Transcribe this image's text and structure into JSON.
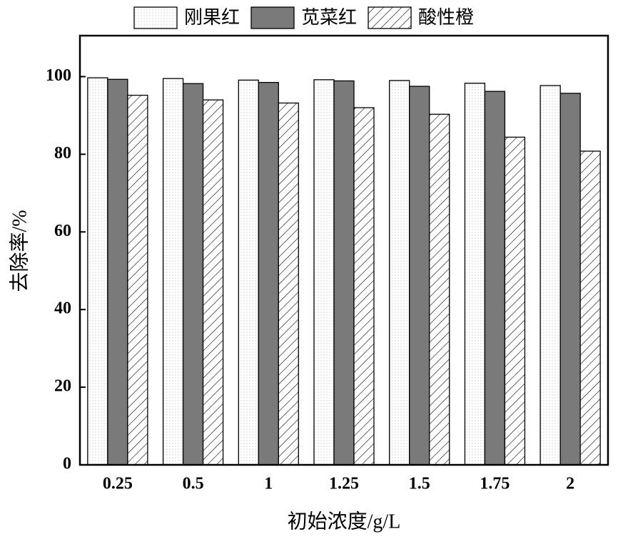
{
  "chart_data": {
    "type": "bar",
    "x_label": "初始浓度/g/L",
    "y_label": "去除率/%",
    "categories": [
      "0.25",
      "0.5",
      "1",
      "1.25",
      "1.5",
      "1.75",
      "2"
    ],
    "series": [
      {
        "name": "刚果红",
        "color": "#ffffff",
        "pattern": "dots",
        "values": [
          99.7,
          99.5,
          99.1,
          99.2,
          99.0,
          98.3,
          97.7
        ]
      },
      {
        "name": "苋菜红",
        "color": "#7a7a7a",
        "pattern": "solid",
        "values": [
          99.3,
          98.2,
          98.5,
          98.9,
          97.5,
          96.2,
          95.7
        ]
      },
      {
        "name": "酸性橙",
        "color": "#ffffff",
        "pattern": "hatch",
        "values": [
          95.2,
          94.0,
          93.2,
          92.0,
          90.3,
          84.4,
          80.8
        ]
      }
    ],
    "ylim": [
      0,
      110
    ],
    "yticks": [
      0,
      20,
      40,
      60,
      80,
      100
    ],
    "legend": "top"
  }
}
